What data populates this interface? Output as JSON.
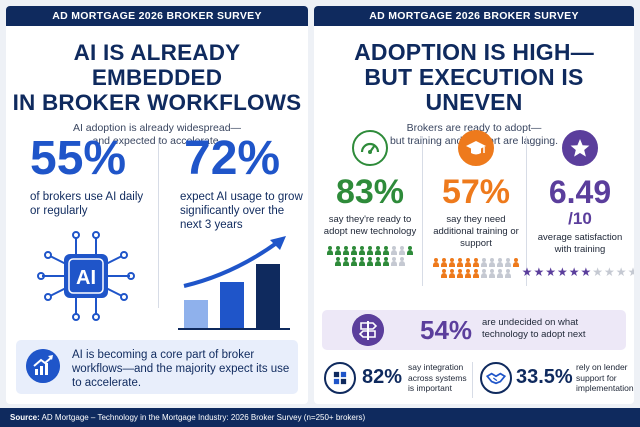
{
  "left": {
    "band": "AD MORTGAGE 2026 BROKER SURVEY",
    "headline_line1": "AI IS ALREADY EMBEDDED",
    "headline_line2": "IN BROKER WORKFLOWS",
    "sub_line1": "AI adoption is already widespread—",
    "sub_line2": "and expected to accelerate.",
    "stat1": {
      "value": "55%",
      "caption": "of brokers use AI daily or regularly"
    },
    "stat2": {
      "value": "72%",
      "caption": "expect AI usage to grow significantly over the next 3 years"
    },
    "chip_label": "AI",
    "callout": "AI is becoming a core part of broker workflows—and the majority expect its use to accelerate."
  },
  "right": {
    "band": "AD MORTGAGE 2026 BROKER SURVEY",
    "headline_line1": "ADOPTION IS HIGH—",
    "headline_line2": "BUT EXECUTION IS UNEVEN",
    "sub_line1": "Brokers are ready to adopt—",
    "sub_line2": "but training and support are lagging.",
    "col1": {
      "value": "83%",
      "caption": "say they're ready to adopt new technology",
      "icon": "gauge-icon",
      "color": "#2e8b3a",
      "filled": 10
    },
    "col2": {
      "value": "57%",
      "caption": "say they need additional training or support",
      "icon": "graduation-cap-icon",
      "color": "#ee7a1c",
      "filled": 6
    },
    "col3": {
      "value": "6.49",
      "suffix": "/10",
      "caption": "average satisfaction with training",
      "icon": "star-icon",
      "color": "#5b3e9c",
      "rating": 6.49
    },
    "undecided": {
      "value": "54%",
      "caption": "are undecided on what technology to adopt next"
    },
    "integration": {
      "value": "82%",
      "caption": "say integration across systems is important"
    },
    "lender": {
      "value": "33.5%",
      "caption": "rely on lender support for implementation"
    }
  },
  "footer": {
    "label": "Source:",
    "text": "AD Mortgage – Technology in the Mortgage Industry: 2026 Broker Survey (n=250+ brokers)"
  }
}
